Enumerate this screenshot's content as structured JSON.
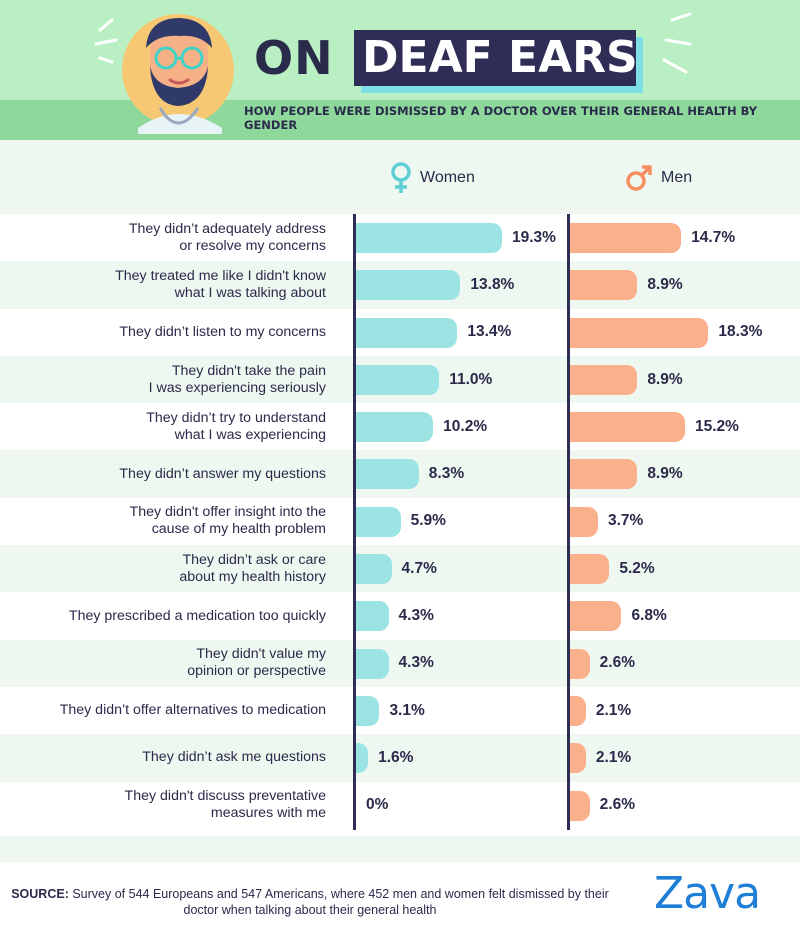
{
  "header": {
    "title_on": "ON",
    "title_main": "DEAF EARS",
    "subtitle": "HOW PEOPLE WERE DISMISSED BY A DOCTOR OVER THEIR GENERAL HEALTH BY GENDER"
  },
  "legend": {
    "women": "Women",
    "men": "Men",
    "women_icon": "female-symbol-icon",
    "men_icon": "male-symbol-icon"
  },
  "colors": {
    "women_bar": "#9be4e3",
    "men_bar": "#fbb08c",
    "women_symbol": "#5fcfd6",
    "men_symbol": "#f68e5f",
    "navy": "#2d2d55",
    "brand": "#1f7fd6"
  },
  "chart_data": {
    "type": "bar",
    "orientation": "horizontal",
    "categories": [
      "They didn’t adequately address\nor resolve my concerns",
      "They treated me like I didn't know\nwhat I was talking about",
      "They didn’t listen to my concerns",
      "They didn't take the pain\nI was experiencing seriously",
      "They didn’t try to understand\nwhat I was experiencing",
      "They didn’t answer my questions",
      "They didn't offer insight into the\ncause of my health problem",
      "They didn’t ask or care\nabout my health history",
      "They prescribed a medication too quickly",
      "They didn't value my\nopinion or perspective",
      "They didn’t offer alternatives to medication",
      "They didn’t ask me questions",
      "They didn't discuss preventative\nmeasures with me"
    ],
    "series": [
      {
        "name": "Women",
        "values": [
          19.3,
          13.8,
          13.4,
          11.0,
          10.2,
          8.3,
          5.9,
          4.7,
          4.3,
          4.3,
          3.1,
          1.6,
          0
        ],
        "labels": [
          "19.3%",
          "13.8%",
          "13.4%",
          "11.0%",
          "10.2%",
          "8.3%",
          "5.9%",
          "4.7%",
          "4.3%",
          "4.3%",
          "3.1%",
          "1.6%",
          "0%"
        ]
      },
      {
        "name": "Men",
        "values": [
          14.7,
          8.9,
          18.3,
          8.9,
          15.2,
          8.9,
          3.7,
          5.2,
          6.8,
          2.6,
          2.1,
          2.1,
          2.6
        ],
        "labels": [
          "14.7%",
          "8.9%",
          "18.3%",
          "8.9%",
          "15.2%",
          "8.9%",
          "3.7%",
          "5.2%",
          "6.8%",
          "2.6%",
          "2.1%",
          "2.1%",
          "2.6%"
        ]
      }
    ],
    "xlim": [
      0,
      19.3
    ],
    "grid": false,
    "legend_placement": "top"
  },
  "footer": {
    "source_label": "SOURCE:",
    "source_text": " Survey of 544 Europeans and 547 Americans, where 452 men and women felt dismissed by their doctor when talking about their general health",
    "brand": "Zava"
  }
}
